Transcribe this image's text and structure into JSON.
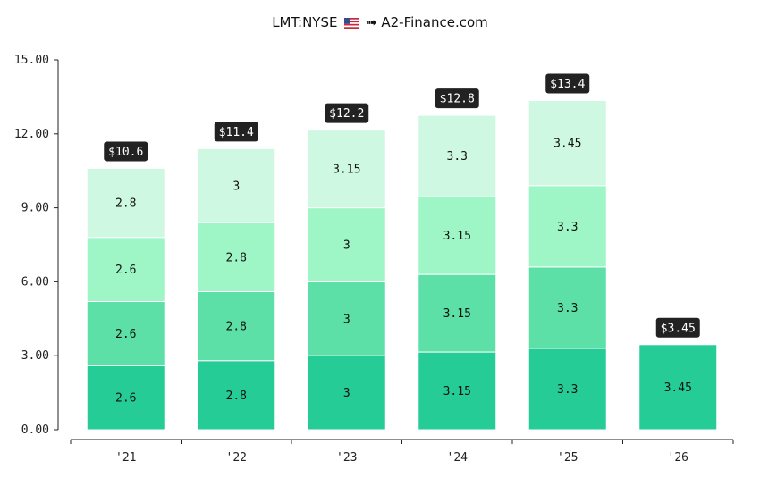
{
  "header": {
    "ticker": "LMT:NYSE",
    "flag_icon": "us-flag-icon",
    "arrow": "➟",
    "site": "A2-Finance.com"
  },
  "chart_data": {
    "type": "bar",
    "stacked": true,
    "categories": [
      "'21",
      "'22",
      "'23",
      "'24",
      "'25",
      "'26"
    ],
    "series": [
      {
        "values": [
          2.6,
          2.8,
          3,
          3.15,
          3.3,
          3.45
        ],
        "color": "#26cc96"
      },
      {
        "values": [
          2.6,
          2.8,
          3,
          3.15,
          3.3,
          null
        ],
        "color": "#5ce0a8"
      },
      {
        "values": [
          2.6,
          2.8,
          3,
          3.15,
          3.3,
          null
        ],
        "color": "#9ef5c6"
      },
      {
        "values": [
          2.8,
          3,
          3.15,
          3.3,
          3.45,
          null
        ],
        "color": "#cff8e3"
      }
    ],
    "totals": [
      "$10.6",
      "$11.4",
      "$12.2",
      "$12.8",
      "$13.4",
      "$3.45"
    ],
    "yticks": [
      "0.00",
      "3.00",
      "6.00",
      "9.00",
      "12.00",
      "15.00"
    ],
    "ylim": [
      0,
      15
    ],
    "grid": false,
    "legend": "none",
    "total_label_bg": "#222222"
  }
}
